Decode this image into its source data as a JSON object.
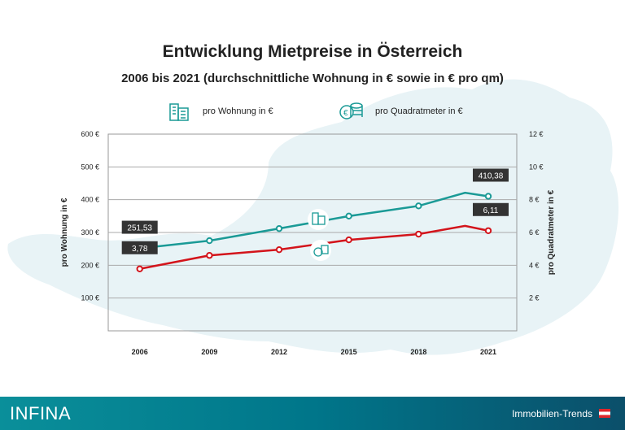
{
  "title": "Entwicklung Mietpreise in Österreich",
  "subtitle": "2006 bis 2021 (durchschnittliche Wohnung in € sowie in € pro qm)",
  "legend": [
    {
      "label": "pro Wohnung in €",
      "icon": "building-icon",
      "color": "#1a9a96"
    },
    {
      "label": "pro Quadratmeter in €",
      "icon": "coins-icon",
      "color": "#1a9a96"
    }
  ],
  "footer": {
    "logo": "INFINA",
    "label": "Immobilien-Trends",
    "flag": "austria-flag"
  },
  "chart_data": {
    "type": "line",
    "x_ticks": [
      "2006",
      "2009",
      "2012",
      "2015",
      "2018",
      "2021"
    ],
    "x": [
      2006,
      2009,
      2012,
      2015,
      2018,
      2020,
      2021
    ],
    "ylabel": "pro Wohnung in €",
    "ylabel_right": "pro Quadratmeter in €",
    "ylim": [
      0,
      600
    ],
    "ylim_right": [
      0,
      12
    ],
    "y_ticks": [
      "100 €",
      "200 €",
      "300 €",
      "400 €",
      "500 €",
      "600 €"
    ],
    "y_ticks_right": [
      "2 €",
      "4 €",
      "6 €",
      "8 €",
      "10 €",
      "12 €"
    ],
    "grid": true,
    "series": [
      {
        "axis": "left",
        "color": "#1a9a96",
        "values": [
          251.53,
          275,
          312,
          350,
          381,
          421,
          410.38
        ],
        "labels": [
          {
            "x": 2006,
            "text": "251,53"
          },
          {
            "x": 2021,
            "text": "410,38"
          }
        ]
      },
      {
        "axis": "right",
        "color": "#d3141b",
        "values": [
          3.78,
          4.6,
          4.95,
          5.55,
          5.9,
          6.4,
          6.11
        ],
        "labels": [
          {
            "x": 2006,
            "text": "3,78"
          },
          {
            "x": 2021,
            "text": "6,11"
          }
        ]
      }
    ]
  }
}
